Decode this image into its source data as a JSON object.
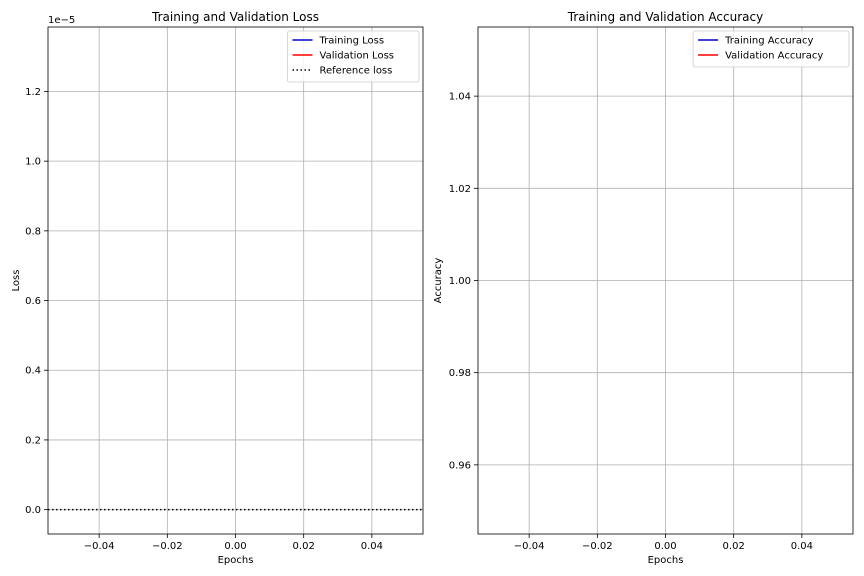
{
  "colors": {
    "background": "#ffffff",
    "axes": "#000000",
    "grid": "#b0b0b0",
    "training": "#0000cc",
    "validation": "#ff0000",
    "reference": "#000000"
  },
  "chart_data": [
    {
      "type": "line",
      "title": "Training and Validation Loss",
      "xlabel": "Epochs",
      "ylabel": "Loss",
      "y_offset_label": "1e−5",
      "xlim": [
        -0.055,
        0.055
      ],
      "ylim": [
        -0.07,
        1.385
      ],
      "xticks": [
        -0.04,
        -0.02,
        0.0,
        0.02,
        0.04
      ],
      "xtick_labels": [
        "−0.04",
        "−0.02",
        "0.00",
        "0.02",
        "0.04"
      ],
      "yticks": [
        0.0,
        0.2,
        0.4,
        0.6,
        0.8,
        1.0,
        1.2
      ],
      "ytick_labels": [
        "0.0",
        "0.2",
        "0.4",
        "0.6",
        "0.8",
        "1.0",
        "1.2"
      ],
      "grid": true,
      "legend_position": "top-right",
      "series": [
        {
          "name": "Training Loss",
          "color": "#0000cc",
          "style": "solid",
          "x": [
            0
          ],
          "y": [
            0.0
          ]
        },
        {
          "name": "Validation Loss",
          "color": "#ff0000",
          "style": "solid",
          "x": [
            0
          ],
          "y": [
            0.0
          ]
        },
        {
          "name": "Reference loss",
          "color": "#000000",
          "style": "dotted",
          "x": [
            -0.055,
            0.055
          ],
          "y": [
            0.0,
            0.0
          ]
        }
      ]
    },
    {
      "type": "line",
      "title": "Training and Validation Accuracy",
      "xlabel": "Epochs",
      "ylabel": "Accuracy",
      "xlim": [
        -0.055,
        0.055
      ],
      "ylim": [
        0.945,
        1.055
      ],
      "xticks": [
        -0.04,
        -0.02,
        0.0,
        0.02,
        0.04
      ],
      "xtick_labels": [
        "−0.04",
        "−0.02",
        "0.00",
        "0.02",
        "0.04"
      ],
      "yticks": [
        0.96,
        0.98,
        1.0,
        1.02,
        1.04
      ],
      "ytick_labels": [
        "0.96",
        "0.98",
        "1.00",
        "1.02",
        "1.04"
      ],
      "grid": true,
      "legend_position": "top-right",
      "series": [
        {
          "name": "Training Accuracy",
          "color": "#0000cc",
          "style": "solid",
          "x": [
            0
          ],
          "y": [
            1.0
          ]
        },
        {
          "name": "Validation Accuracy",
          "color": "#ff0000",
          "style": "solid",
          "x": [
            0
          ],
          "y": [
            1.0
          ]
        }
      ]
    }
  ]
}
